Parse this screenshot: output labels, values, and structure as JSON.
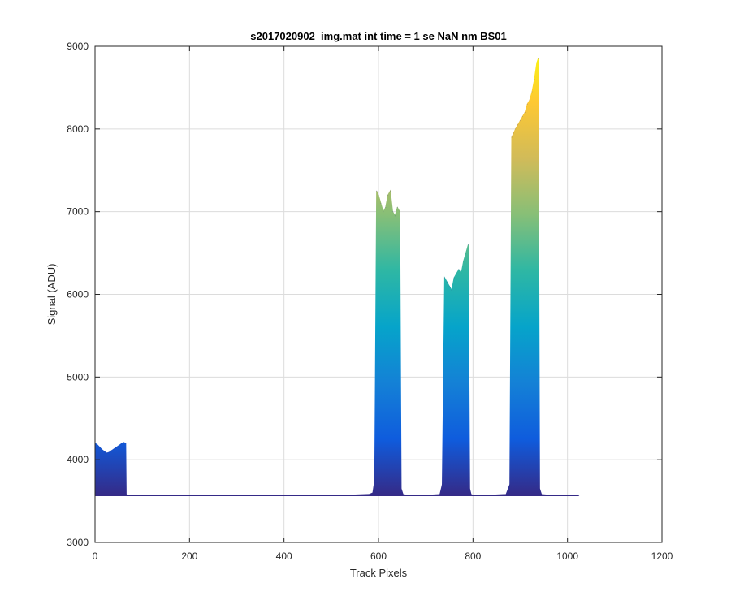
{
  "chart_data": {
    "type": "area",
    "title": "s2017020902_img.mat int time = 1 se  NaN nm BS01",
    "xlabel": "Track Pixels",
    "ylabel": "Signal (ADU)",
    "xlim": [
      0,
      1200
    ],
    "ylim": [
      3000,
      9000
    ],
    "x_ticks": [
      0,
      200,
      400,
      600,
      800,
      1000,
      1200
    ],
    "x_tick_labels": [
      "0",
      "200",
      "400",
      "600",
      "800",
      "1000",
      "1200"
    ],
    "y_ticks": [
      3000,
      4000,
      5000,
      6000,
      7000,
      8000,
      9000
    ],
    "y_tick_labels": [
      "3000",
      "4000",
      "5000",
      "6000",
      "7000",
      "8000",
      "9000"
    ],
    "grid": true,
    "legend": "none",
    "baseline": 3570,
    "colormap": "parula",
    "colormap_stops": [
      "#352a87",
      "#0f5cdd",
      "#1481d6",
      "#06a4ca",
      "#2eb7a4",
      "#87bf77",
      "#d1bb59",
      "#fec832",
      "#f9fb0e"
    ],
    "series": [
      {
        "x": [
          0,
          5,
          10,
          15,
          20,
          25,
          30,
          35,
          40,
          45,
          50,
          55,
          60,
          65,
          66,
          68,
          70,
          100,
          150,
          200,
          250,
          300,
          350,
          400,
          450,
          500,
          550,
          580,
          588,
          592,
          596,
          600,
          605,
          610,
          615,
          620,
          625,
          630,
          635,
          640,
          645,
          648,
          652,
          660,
          700,
          730,
          735,
          740,
          745,
          750,
          755,
          760,
          765,
          770,
          775,
          780,
          785,
          790,
          793,
          796,
          800,
          830,
          870,
          878,
          882,
          886,
          890,
          895,
          900,
          905,
          910,
          915,
          920,
          925,
          930,
          935,
          938,
          941,
          945,
          960,
          1000,
          1024
        ],
        "y": [
          4200,
          4180,
          4150,
          4120,
          4100,
          4080,
          4090,
          4110,
          4130,
          4150,
          4170,
          4190,
          4210,
          4200,
          3580,
          3570,
          3572,
          3568,
          3574,
          3570,
          3571,
          3569,
          3573,
          3570,
          3572,
          3571,
          3575,
          3580,
          3600,
          3750,
          7250,
          7200,
          7100,
          7000,
          7050,
          7200,
          7250,
          7000,
          6950,
          7050,
          7000,
          3650,
          3580,
          3572,
          3570,
          3580,
          3700,
          6200,
          6150,
          6100,
          6050,
          6200,
          6250,
          6300,
          6250,
          6400,
          6500,
          6600,
          3650,
          3580,
          3572,
          3570,
          3580,
          3700,
          7900,
          7950,
          8000,
          8050,
          8100,
          8150,
          8200,
          8300,
          8350,
          8450,
          8600,
          8800,
          8850,
          3650,
          3580,
          3572,
          3570,
          3568
        ]
      }
    ]
  }
}
